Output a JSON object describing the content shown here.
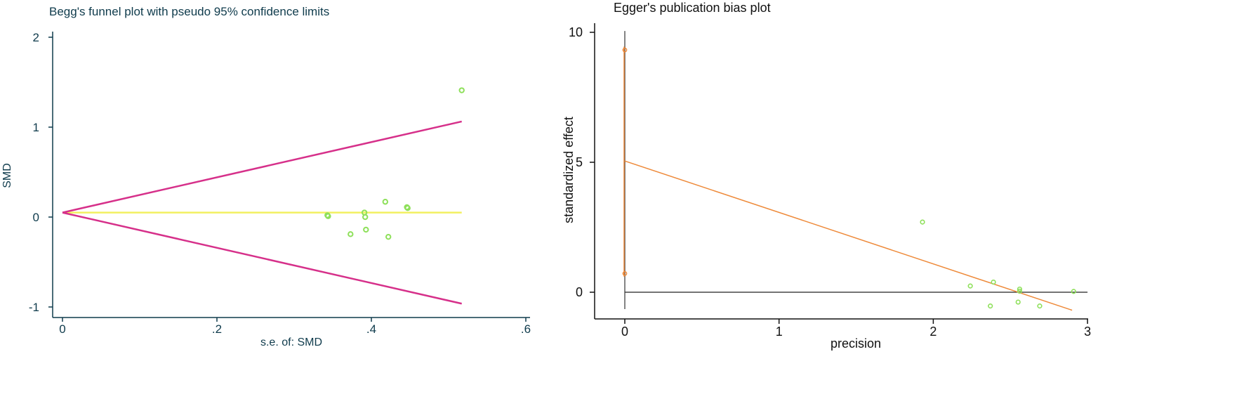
{
  "chart_data": [
    {
      "type": "scatter",
      "title": "Begg's funnel plot with pseudo 95% confidence limits",
      "xlabel": "s.e. of: SMD",
      "ylabel": "SMD",
      "xlim": [
        0,
        0.6
      ],
      "ylim": [
        -1,
        2
      ],
      "x_ticks": [
        0,
        0.2,
        0.4,
        0.6
      ],
      "x_tick_labels": [
        "0",
        ".2",
        ".4",
        ".6"
      ],
      "y_ticks": [
        -1,
        0,
        1,
        2
      ],
      "y_tick_labels": [
        "-1",
        "0",
        "1",
        "2"
      ],
      "grid": false,
      "colors": {
        "points": "#8ee05a",
        "limits": "#d6308a",
        "pooled": "#f2f060",
        "axis": "#0f3b4c"
      },
      "pooled_estimate": 0.05,
      "confidence_limits": {
        "se_range": [
          0,
          0.517
        ],
        "upper": [
          0.05,
          1.063
        ],
        "lower": [
          0.05,
          -0.963
        ]
      },
      "points": [
        {
          "x": 0.343,
          "y": 0.02
        },
        {
          "x": 0.344,
          "y": 0.01
        },
        {
          "x": 0.373,
          "y": -0.19
        },
        {
          "x": 0.391,
          "y": 0.05
        },
        {
          "x": 0.392,
          "y": 0.0
        },
        {
          "x": 0.393,
          "y": -0.14
        },
        {
          "x": 0.418,
          "y": 0.17
        },
        {
          "x": 0.422,
          "y": -0.22
        },
        {
          "x": 0.446,
          "y": 0.11
        },
        {
          "x": 0.447,
          "y": 0.1
        },
        {
          "x": 0.517,
          "y": 1.41
        }
      ]
    },
    {
      "type": "scatter",
      "title": "Egger's publication bias plot",
      "xlabel": "precision",
      "ylabel": "standardized effect",
      "xlim": [
        0,
        3
      ],
      "ylim": [
        -1,
        10
      ],
      "x_ticks": [
        0,
        1,
        2,
        3
      ],
      "x_tick_labels": [
        "0",
        "1",
        "2",
        "3"
      ],
      "y_ticks": [
        0,
        5,
        10
      ],
      "y_tick_labels": [
        "0",
        "5",
        "10"
      ],
      "grid": false,
      "colors": {
        "points": "#8ee05a",
        "regression": "#ee8a3a",
        "intercept_points": "#ee8a3a",
        "axis": "#111111"
      },
      "regression_line": {
        "intercept": 5.05,
        "slope": -1.98,
        "x_range": [
          0,
          2.9
        ]
      },
      "intercept_ci": {
        "x": 0,
        "y_range": [
          -0.65,
          10.05
        ]
      },
      "intercept_points": [
        {
          "x": 0,
          "y": 9.32
        },
        {
          "x": 0,
          "y": 0.72
        }
      ],
      "points": [
        {
          "x": 1.93,
          "y": 2.7
        },
        {
          "x": 2.24,
          "y": 0.24
        },
        {
          "x": 2.37,
          "y": -0.53
        },
        {
          "x": 2.39,
          "y": 0.39
        },
        {
          "x": 2.55,
          "y": -0.38
        },
        {
          "x": 2.56,
          "y": 0.12
        },
        {
          "x": 2.56,
          "y": 0.04
        },
        {
          "x": 2.69,
          "y": -0.53
        },
        {
          "x": 2.91,
          "y": 0.03
        }
      ]
    }
  ]
}
